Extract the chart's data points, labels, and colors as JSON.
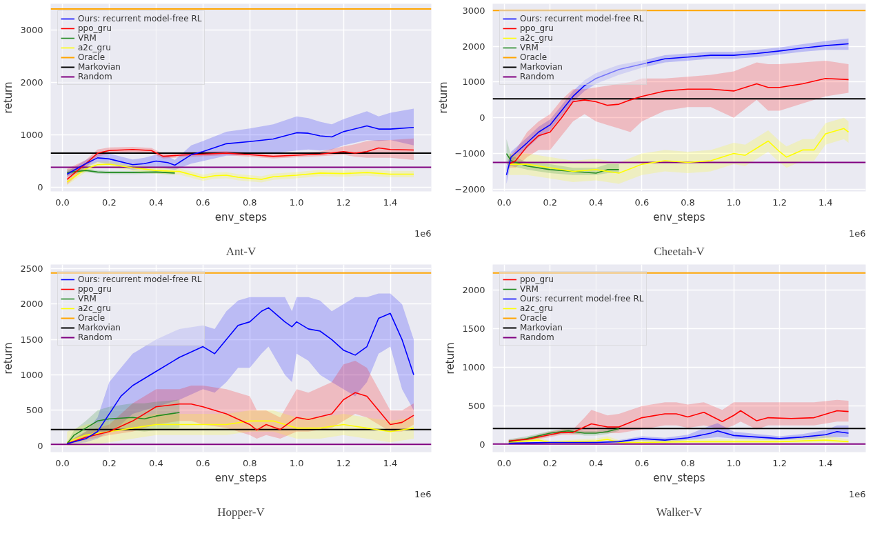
{
  "chart_data": [
    {
      "type": "line",
      "title": "Ant-V",
      "xlabel": "env_steps",
      "ylabel": "return",
      "annotations": [
        "1e6"
      ],
      "xlim": [
        -0.05,
        1.575
      ],
      "ylim": [
        -80,
        3500
      ],
      "xticks": [
        {
          "value": 0,
          "label": "0.0"
        },
        {
          "value": 0.2,
          "label": "0.2"
        },
        {
          "value": 0.4,
          "label": "0.4"
        },
        {
          "value": 0.6,
          "label": "0.6"
        },
        {
          "value": 0.8,
          "label": "0.8"
        },
        {
          "value": 1.0,
          "label": "1.0"
        },
        {
          "value": 1.2,
          "label": "1.2"
        },
        {
          "value": 1.4,
          "label": "1.4"
        }
      ],
      "yticks": [
        0,
        1000,
        2000,
        3000
      ],
      "grid": true,
      "legend": "top left",
      "series": [
        {
          "name": "Ours: recurrent model-free RL",
          "color": "#0000ff",
          "x": [
            0.02,
            0.1,
            0.15,
            0.2,
            0.3,
            0.35,
            0.4,
            0.45,
            0.48,
            0.55,
            0.6,
            0.7,
            0.8,
            0.9,
            1.0,
            1.05,
            1.1,
            1.15,
            1.2,
            1.3,
            1.35,
            1.4,
            1.5
          ],
          "values": [
            250,
            450,
            560,
            540,
            430,
            450,
            500,
            470,
            420,
            620,
            680,
            830,
            870,
            920,
            1040,
            1030,
            980,
            960,
            1060,
            1170,
            1110,
            1110,
            1140
          ],
          "lower": [
            200,
            380,
            480,
            440,
            330,
            350,
            380,
            350,
            330,
            450,
            500,
            600,
            620,
            650,
            700,
            720,
            700,
            720,
            800,
            900,
            880,
            900,
            800
          ],
          "upper": [
            300,
            520,
            640,
            640,
            530,
            560,
            620,
            590,
            520,
            800,
            880,
            1060,
            1120,
            1200,
            1350,
            1320,
            1250,
            1200,
            1300,
            1450,
            1350,
            1420,
            1500
          ]
        },
        {
          "name": "ppo_gru",
          "color": "#ff0000",
          "x": [
            0.02,
            0.1,
            0.15,
            0.2,
            0.3,
            0.38,
            0.43,
            0.5,
            0.6,
            0.7,
            0.8,
            0.9,
            1.0,
            1.1,
            1.2,
            1.25,
            1.3,
            1.35,
            1.4,
            1.5
          ],
          "values": [
            150,
            450,
            650,
            700,
            720,
            700,
            590,
            610,
            630,
            650,
            620,
            590,
            610,
            630,
            680,
            650,
            680,
            750,
            720,
            710
          ],
          "lower": [
            50,
            380,
            580,
            640,
            670,
            650,
            550,
            570,
            590,
            610,
            580,
            550,
            570,
            590,
            620,
            580,
            560,
            560,
            560,
            520
          ],
          "upper": [
            350,
            520,
            720,
            760,
            770,
            750,
            640,
            660,
            680,
            690,
            660,
            630,
            650,
            680,
            780,
            820,
            880,
            900,
            900,
            930
          ]
        },
        {
          "name": "VRM",
          "color": "#228b22",
          "x": [
            0.02,
            0.1,
            0.15,
            0.2,
            0.3,
            0.4,
            0.48
          ],
          "values": [
            280,
            320,
            290,
            280,
            280,
            290,
            270
          ],
          "lower": [
            230,
            290,
            260,
            250,
            250,
            260,
            240
          ],
          "upper": [
            340,
            360,
            320,
            310,
            310,
            320,
            300
          ]
        },
        {
          "name": "a2c_gru",
          "color": "#ffff00",
          "x": [
            0.02,
            0.1,
            0.15,
            0.2,
            0.3,
            0.4,
            0.5,
            0.6,
            0.65,
            0.7,
            0.75,
            0.85,
            0.9,
            1.0,
            1.1,
            1.2,
            1.3,
            1.4,
            1.5
          ],
          "values": [
            100,
            350,
            430,
            440,
            370,
            320,
            300,
            180,
            220,
            230,
            190,
            150,
            200,
            230,
            270,
            260,
            280,
            250,
            250
          ],
          "lower": [
            40,
            290,
            370,
            380,
            310,
            260,
            240,
            120,
            160,
            170,
            130,
            90,
            140,
            170,
            210,
            200,
            220,
            190,
            190
          ],
          "upper": [
            160,
            410,
            490,
            500,
            430,
            380,
            360,
            240,
            280,
            290,
            250,
            210,
            260,
            290,
            330,
            320,
            340,
            310,
            310
          ]
        }
      ],
      "ref_lines": [
        {
          "axis": "y",
          "value": 3400,
          "label": "Oracle",
          "color": "#ffa500"
        },
        {
          "axis": "y",
          "value": 650,
          "label": "Markovian",
          "color": "#000000"
        },
        {
          "axis": "y",
          "value": 380,
          "label": "Random",
          "color": "#800080"
        }
      ]
    },
    {
      "type": "line",
      "title": "Cheetah-V",
      "xlabel": "env_steps",
      "ylabel": "return",
      "annotations": [
        "1e6"
      ],
      "xlim": [
        -0.05,
        1.575
      ],
      "ylim": [
        -2060,
        3190
      ],
      "xticks": [
        {
          "value": 0,
          "label": "0.0"
        },
        {
          "value": 0.2,
          "label": "0.2"
        },
        {
          "value": 0.4,
          "label": "0.4"
        },
        {
          "value": 0.6,
          "label": "0.6"
        },
        {
          "value": 0.8,
          "label": "0.8"
        },
        {
          "value": 1.0,
          "label": "1.0"
        },
        {
          "value": 1.2,
          "label": "1.2"
        },
        {
          "value": 1.4,
          "label": "1.4"
        }
      ],
      "yticks": [
        -2000,
        -1000,
        0,
        1000,
        2000,
        3000
      ],
      "grid": true,
      "legend": "top left",
      "series": [
        {
          "name": "Ours: recurrent model-free RL",
          "color": "#0000ff",
          "x": [
            0.01,
            0.03,
            0.1,
            0.15,
            0.2,
            0.25,
            0.3,
            0.35,
            0.4,
            0.5,
            0.6,
            0.7,
            0.8,
            0.9,
            1.0,
            1.1,
            1.2,
            1.3,
            1.4,
            1.5
          ],
          "values": [
            -1600,
            -1100,
            -700,
            -400,
            -200,
            200,
            600,
            900,
            1100,
            1350,
            1500,
            1650,
            1700,
            1750,
            1750,
            1800,
            1870,
            1950,
            2020,
            2070
          ],
          "lower": [
            -1850,
            -1250,
            -850,
            -550,
            -350,
            50,
            450,
            750,
            950,
            1200,
            1400,
            1550,
            1600,
            1650,
            1650,
            1700,
            1770,
            1850,
            1900,
            1900
          ],
          "upper": [
            -1350,
            -950,
            -550,
            -250,
            -50,
            350,
            750,
            1050,
            1250,
            1480,
            1600,
            1750,
            1800,
            1850,
            1850,
            1900,
            1970,
            2060,
            2150,
            2220
          ]
        },
        {
          "name": "ppo_gru",
          "color": "#ff0000",
          "x": [
            0.02,
            0.05,
            0.1,
            0.15,
            0.2,
            0.25,
            0.3,
            0.35,
            0.4,
            0.45,
            0.5,
            0.55,
            0.6,
            0.7,
            0.8,
            0.9,
            1.0,
            1.1,
            1.15,
            1.2,
            1.3,
            1.4,
            1.5
          ],
          "values": [
            -1300,
            -1200,
            -800,
            -500,
            -400,
            0,
            450,
            500,
            450,
            350,
            380,
            500,
            600,
            750,
            800,
            800,
            750,
            950,
            850,
            850,
            950,
            1100,
            1070
          ],
          "lower": [
            -1400,
            -1400,
            -1100,
            -900,
            -900,
            -500,
            -100,
            100,
            -100,
            -200,
            -300,
            -400,
            -100,
            200,
            300,
            300,
            0,
            500,
            200,
            200,
            400,
            600,
            700
          ],
          "upper": [
            -1100,
            -900,
            -400,
            -100,
            100,
            500,
            800,
            800,
            850,
            900,
            950,
            1000,
            1100,
            1100,
            1150,
            1200,
            1300,
            1550,
            1500,
            1500,
            1550,
            1600,
            1500
          ]
        },
        {
          "name": "a2c_gru",
          "color": "#ffff00",
          "x": [
            0.02,
            0.1,
            0.2,
            0.3,
            0.4,
            0.5,
            0.6,
            0.7,
            0.8,
            0.9,
            1.0,
            1.05,
            1.15,
            1.2,
            1.23,
            1.3,
            1.35,
            1.4,
            1.48,
            1.5
          ],
          "values": [
            -1300,
            -1300,
            -1400,
            -1500,
            -1450,
            -1550,
            -1300,
            -1200,
            -1250,
            -1200,
            -1000,
            -1050,
            -650,
            -950,
            -1100,
            -900,
            -900,
            -450,
            -300,
            -400
          ],
          "lower": [
            -1600,
            -1600,
            -1700,
            -1800,
            -1750,
            -1850,
            -1600,
            -1500,
            -1550,
            -1500,
            -1300,
            -1350,
            -950,
            -1250,
            -1400,
            -1200,
            -1200,
            -750,
            -600,
            -700
          ],
          "upper": [
            -1000,
            -1000,
            -1100,
            -1200,
            -1150,
            -1250,
            -1000,
            -900,
            -950,
            -900,
            -700,
            -750,
            -350,
            -650,
            -800,
            -600,
            -600,
            -150,
            0,
            -100
          ]
        },
        {
          "name": "VRM",
          "color": "#228b22",
          "x": [
            0.01,
            0.03,
            0.1,
            0.2,
            0.3,
            0.4,
            0.45,
            0.5
          ],
          "values": [
            -1000,
            -1200,
            -1350,
            -1450,
            -1500,
            -1550,
            -1450,
            -1450
          ],
          "lower": [
            -1300,
            -1350,
            -1450,
            -1550,
            -1600,
            -1600,
            -1550,
            -1550
          ],
          "upper": [
            -600,
            -1050,
            -1250,
            -1300,
            -1400,
            -1400,
            -1300,
            -1300
          ]
        }
      ],
      "ref_lines": [
        {
          "axis": "y",
          "value": 3000,
          "label": "Oracle",
          "color": "#ffa500"
        },
        {
          "axis": "y",
          "value": 530,
          "label": "Markovian",
          "color": "#000000"
        },
        {
          "axis": "y",
          "value": -1250,
          "label": "Random",
          "color": "#800080"
        }
      ]
    },
    {
      "type": "line",
      "title": "Hopper-V",
      "xlabel": "env_steps",
      "ylabel": "return",
      "annotations": [
        "1e6"
      ],
      "xlim": [
        -0.05,
        1.575
      ],
      "ylim": [
        -90,
        2560
      ],
      "xticks": [
        {
          "value": 0,
          "label": "0.0"
        },
        {
          "value": 0.2,
          "label": "0.2"
        },
        {
          "value": 0.4,
          "label": "0.4"
        },
        {
          "value": 0.6,
          "label": "0.6"
        },
        {
          "value": 0.8,
          "label": "0.8"
        },
        {
          "value": 1.0,
          "label": "1.0"
        },
        {
          "value": 1.2,
          "label": "1.2"
        },
        {
          "value": 1.4,
          "label": "1.4"
        }
      ],
      "yticks": [
        0,
        500,
        1000,
        1500,
        2000,
        2500
      ],
      "grid": true,
      "legend": "top left",
      "series": [
        {
          "name": "Ours: recurrent model-free RL",
          "color": "#0000ff",
          "x": [
            0.02,
            0.1,
            0.15,
            0.2,
            0.25,
            0.3,
            0.4,
            0.5,
            0.6,
            0.65,
            0.7,
            0.75,
            0.8,
            0.85,
            0.88,
            0.95,
            0.98,
            1.0,
            1.05,
            1.1,
            1.15,
            1.2,
            1.25,
            1.3,
            1.35,
            1.4,
            1.45,
            1.5
          ],
          "values": [
            30,
            100,
            200,
            450,
            700,
            850,
            1050,
            1250,
            1400,
            1300,
            1500,
            1700,
            1750,
            1900,
            1950,
            1750,
            1680,
            1750,
            1650,
            1620,
            1500,
            1350,
            1280,
            1400,
            1800,
            1870,
            1500,
            1000
          ],
          "lower": [
            20,
            50,
            100,
            200,
            300,
            450,
            550,
            650,
            800,
            750,
            900,
            1100,
            1100,
            1300,
            1400,
            1000,
            900,
            1300,
            1200,
            1000,
            900,
            800,
            700,
            900,
            1300,
            1400,
            800,
            500
          ],
          "upper": [
            50,
            200,
            400,
            900,
            1100,
            1300,
            1500,
            1650,
            1700,
            1650,
            1900,
            2050,
            2100,
            2100,
            2100,
            2100,
            1900,
            2100,
            2100,
            2050,
            1900,
            2000,
            2100,
            2100,
            2150,
            2150,
            2000,
            1500
          ]
        },
        {
          "name": "ppo_gru",
          "color": "#ff0000",
          "x": [
            0.02,
            0.1,
            0.2,
            0.3,
            0.4,
            0.5,
            0.55,
            0.6,
            0.7,
            0.8,
            0.83,
            0.87,
            0.93,
            1.0,
            1.05,
            1.15,
            1.2,
            1.25,
            1.3,
            1.35,
            1.4,
            1.45,
            1.5
          ],
          "values": [
            30,
            120,
            200,
            350,
            550,
            590,
            590,
            550,
            450,
            300,
            220,
            300,
            230,
            400,
            370,
            450,
            650,
            750,
            700,
            500,
            300,
            330,
            430
          ],
          "lower": [
            20,
            80,
            150,
            200,
            300,
            350,
            350,
            300,
            250,
            150,
            100,
            150,
            100,
            200,
            200,
            250,
            350,
            450,
            400,
            300,
            200,
            200,
            300
          ],
          "upper": [
            50,
            200,
            300,
            600,
            800,
            800,
            850,
            850,
            800,
            700,
            500,
            500,
            400,
            800,
            750,
            900,
            1150,
            1200,
            1100,
            800,
            500,
            500,
            600
          ]
        },
        {
          "name": "VRM",
          "color": "#228b22",
          "x": [
            0.02,
            0.05,
            0.1,
            0.15,
            0.2,
            0.3,
            0.35,
            0.4,
            0.5
          ],
          "values": [
            30,
            150,
            250,
            350,
            380,
            400,
            380,
            420,
            470
          ],
          "lower": [
            20,
            100,
            150,
            200,
            200,
            220,
            200,
            220,
            250
          ],
          "upper": [
            50,
            220,
            350,
            500,
            550,
            600,
            600,
            620,
            650
          ]
        },
        {
          "name": "a2c_gru",
          "color": "#ffff00",
          "x": [
            0.02,
            0.1,
            0.2,
            0.3,
            0.4,
            0.5,
            0.6,
            0.7,
            0.8,
            0.9,
            1.0,
            1.1,
            1.2,
            1.3,
            1.4,
            1.5
          ],
          "values": [
            50,
            150,
            200,
            250,
            300,
            300,
            300,
            300,
            350,
            350,
            250,
            250,
            300,
            250,
            200,
            250
          ],
          "lower": [
            0,
            0,
            50,
            100,
            150,
            150,
            150,
            150,
            200,
            200,
            100,
            100,
            150,
            100,
            50,
            100
          ],
          "upper": [
            200,
            300,
            350,
            400,
            450,
            450,
            450,
            450,
            500,
            500,
            400,
            400,
            450,
            400,
            350,
            400
          ]
        }
      ],
      "ref_lines": [
        {
          "axis": "y",
          "value": 2440,
          "label": "Oracle",
          "color": "#ffa500"
        },
        {
          "axis": "y",
          "value": 230,
          "label": "Markovian",
          "color": "#000000"
        },
        {
          "axis": "y",
          "value": 20,
          "label": "Random",
          "color": "#800080"
        }
      ]
    },
    {
      "type": "line",
      "title": "Walker-V",
      "xlabel": "env_steps",
      "ylabel": "return",
      "annotations": [
        "1e6"
      ],
      "xlim": [
        -0.05,
        1.575
      ],
      "ylim": [
        -95,
        2330
      ],
      "xticks": [
        {
          "value": 0,
          "label": "0.0"
        },
        {
          "value": 0.2,
          "label": "0.2"
        },
        {
          "value": 0.4,
          "label": "0.4"
        },
        {
          "value": 0.6,
          "label": "0.6"
        },
        {
          "value": 0.8,
          "label": "0.8"
        },
        {
          "value": 1.0,
          "label": "1.0"
        },
        {
          "value": 1.2,
          "label": "1.2"
        },
        {
          "value": 1.4,
          "label": "1.4"
        }
      ],
      "yticks": [
        0,
        500,
        1000,
        1500,
        2000
      ],
      "grid": true,
      "legend": "top left",
      "series": [
        {
          "name": "ppo_gru",
          "color": "#ff0000",
          "x": [
            0.02,
            0.1,
            0.2,
            0.25,
            0.3,
            0.35,
            0.38,
            0.45,
            0.5,
            0.6,
            0.7,
            0.75,
            0.8,
            0.87,
            0.95,
            1.0,
            1.03,
            1.1,
            1.15,
            1.25,
            1.35,
            1.45,
            1.5
          ],
          "values": [
            50,
            70,
            130,
            160,
            160,
            230,
            270,
            230,
            230,
            350,
            400,
            400,
            360,
            420,
            300,
            380,
            440,
            310,
            350,
            340,
            350,
            440,
            430
          ],
          "lower": [
            30,
            50,
            100,
            130,
            130,
            150,
            150,
            150,
            150,
            200,
            250,
            250,
            220,
            250,
            200,
            250,
            300,
            200,
            250,
            250,
            250,
            300,
            300
          ],
          "upper": [
            70,
            90,
            170,
            200,
            200,
            350,
            450,
            380,
            400,
            500,
            550,
            550,
            520,
            550,
            450,
            550,
            550,
            550,
            550,
            550,
            550,
            580,
            570
          ]
        },
        {
          "name": "VRM",
          "color": "#228b22",
          "x": [
            0.02,
            0.1,
            0.2,
            0.25,
            0.28,
            0.35,
            0.4,
            0.45,
            0.5
          ],
          "values": [
            40,
            80,
            150,
            170,
            180,
            150,
            150,
            170,
            210
          ],
          "lower": [
            10,
            50,
            120,
            140,
            150,
            120,
            120,
            140,
            180
          ],
          "upper": [
            70,
            110,
            180,
            200,
            210,
            180,
            180,
            200,
            240
          ]
        },
        {
          "name": "Ours: recurrent model-free RL",
          "color": "#0000ff",
          "x": [
            0.02,
            0.2,
            0.4,
            0.5,
            0.6,
            0.7,
            0.8,
            0.9,
            0.93,
            1.0,
            1.1,
            1.2,
            1.3,
            1.4,
            1.45,
            1.5
          ],
          "values": [
            20,
            30,
            30,
            40,
            80,
            60,
            90,
            150,
            180,
            120,
            100,
            80,
            100,
            130,
            170,
            150
          ],
          "lower": [
            10,
            20,
            20,
            30,
            50,
            40,
            60,
            90,
            100,
            80,
            70,
            60,
            70,
            90,
            100,
            100
          ],
          "upper": [
            30,
            40,
            40,
            60,
            110,
            90,
            130,
            250,
            280,
            170,
            140,
            110,
            140,
            190,
            250,
            250
          ]
        },
        {
          "name": "a2c_gru",
          "color": "#ffff00",
          "x": [
            0.02,
            0.15,
            0.2,
            0.4,
            0.45,
            0.5,
            0.6,
            0.8,
            1.0,
            1.2,
            1.4,
            1.5
          ],
          "values": [
            30,
            60,
            30,
            50,
            70,
            30,
            30,
            40,
            40,
            40,
            60,
            40
          ],
          "lower": [
            10,
            30,
            10,
            20,
            40,
            10,
            10,
            20,
            20,
            20,
            30,
            20
          ],
          "upper": [
            50,
            90,
            50,
            80,
            110,
            60,
            60,
            70,
            70,
            70,
            120,
            70
          ]
        }
      ],
      "ref_lines": [
        {
          "axis": "y",
          "value": 2220,
          "label": "Oracle",
          "color": "#ffa500"
        },
        {
          "axis": "y",
          "value": 210,
          "label": "Markovian",
          "color": "#000000"
        },
        {
          "axis": "y",
          "value": 10,
          "label": "Random",
          "color": "#800080"
        }
      ]
    }
  ]
}
